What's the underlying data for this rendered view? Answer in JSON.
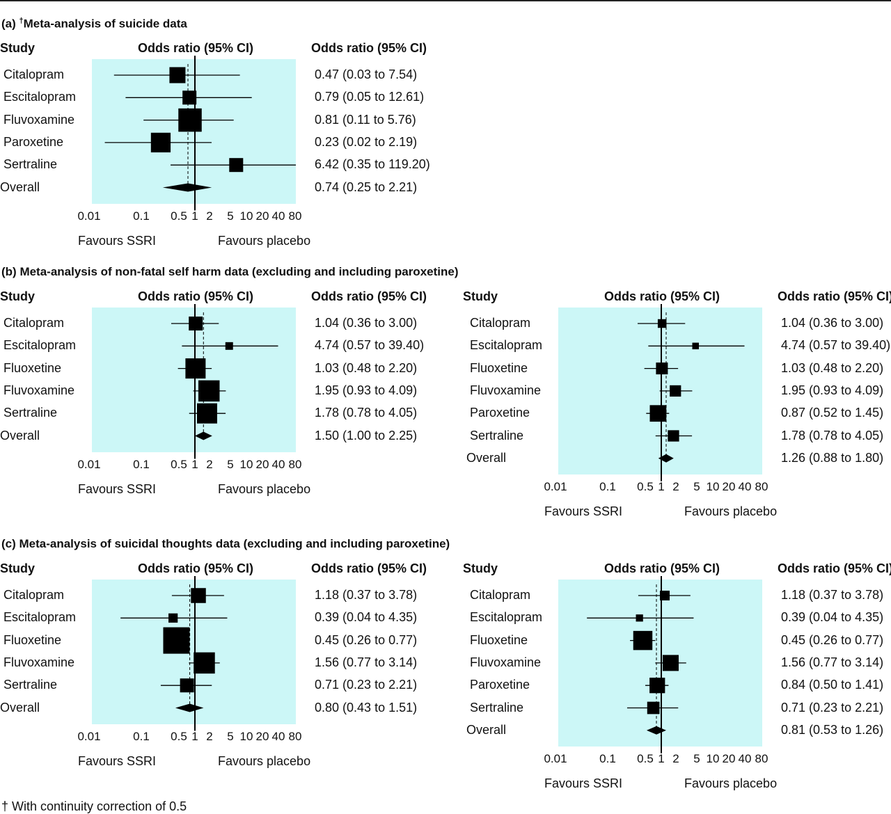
{
  "sections": [
    {
      "id": "a",
      "title_prefix": "(a) ",
      "title_sup": "†",
      "title_rest": "Meta-analysis of suicide data"
    },
    {
      "id": "b",
      "title_prefix": "(b) ",
      "title_sup": "",
      "title_rest": "Meta-analysis of non-fatal self harm data (excluding and including paroxetine)"
    },
    {
      "id": "c",
      "title_prefix": "(c) ",
      "title_sup": "",
      "title_rest": "Meta-analysis of suicidal thoughts data (excluding and including paroxetine)"
    }
  ],
  "headers": {
    "study": "Study",
    "or_ci": "Odds ratio (95% CI)"
  },
  "axis": {
    "ticks": [
      0.01,
      0.1,
      0.5,
      1,
      2,
      5,
      10,
      20,
      40,
      80
    ],
    "tick_labels": [
      "0.01",
      "0.1",
      "0.5",
      "1",
      "2",
      "5",
      "10",
      "20",
      "40",
      "80"
    ],
    "favours_left": "Favours SSRI",
    "favours_right": "Favours placebo",
    "scale": "log"
  },
  "footnote": "† With continuity correction of 0.5",
  "chart_data": [
    {
      "type": "forest",
      "section": "a",
      "rows": [
        {
          "study": "Citalopram",
          "or": 0.47,
          "lo": 0.03,
          "hi": 7.54,
          "label": "0.47 (0.03 to 7.54)",
          "weight": 2
        },
        {
          "study": "Escitalopram",
          "or": 0.79,
          "lo": 0.05,
          "hi": 12.61,
          "label": "0.79 (0.05 to 12.61)",
          "weight": 1.6
        },
        {
          "study": "Fluvoxamine",
          "or": 0.81,
          "lo": 0.11,
          "hi": 5.76,
          "label": "0.81 (0.11 to 5.76)",
          "weight": 3.4
        },
        {
          "study": "Paroxetine",
          "or": 0.23,
          "lo": 0.02,
          "hi": 2.19,
          "label": "0.23 (0.02 to 2.19)",
          "weight": 2.7
        },
        {
          "study": "Sertraline",
          "or": 6.42,
          "lo": 0.35,
          "hi": 119.2,
          "label": "6.42 (0.35 to 119.20)",
          "weight": 1.6
        }
      ],
      "overall": {
        "study": "Overall",
        "or": 0.74,
        "lo": 0.25,
        "hi": 2.21,
        "label": "0.74 (0.25 to 2.21)"
      }
    },
    {
      "type": "forest",
      "section": "b",
      "rows": [
        {
          "study": "Citalopram",
          "or": 1.04,
          "lo": 0.36,
          "hi": 3.0,
          "label": "1.04 (0.36 to 3.00)",
          "weight": 1.6
        },
        {
          "study": "Escitalopram",
          "or": 4.74,
          "lo": 0.57,
          "hi": 39.4,
          "label": "4.74 (0.57 to 39.40)",
          "weight": 0.4
        },
        {
          "study": "Fluoxetine",
          "or": 1.03,
          "lo": 0.48,
          "hi": 2.2,
          "label": "1.03 (0.48 to 2.20)",
          "weight": 2.8
        },
        {
          "study": "Fluvoxamine",
          "or": 1.95,
          "lo": 0.93,
          "hi": 4.09,
          "label": "1.95 (0.93 to 4.09)",
          "weight": 3.0
        },
        {
          "study": "Sertraline",
          "or": 1.78,
          "lo": 0.78,
          "hi": 4.05,
          "label": "1.78 (0.78 to 4.05)",
          "weight": 2.8
        }
      ],
      "overall": {
        "study": "Overall",
        "or": 1.5,
        "lo": 1.0,
        "hi": 2.25,
        "label": "1.50 (1.00 to 2.25)"
      }
    },
    {
      "type": "forest",
      "section": "b",
      "rows": [
        {
          "study": "Citalopram",
          "or": 1.04,
          "lo": 0.36,
          "hi": 3.0,
          "label": "1.04 (0.36 to 3.00)",
          "weight": 0.6
        },
        {
          "study": "Escitalopram",
          "or": 4.74,
          "lo": 0.57,
          "hi": 39.4,
          "label": "4.74 (0.57 to 39.40)",
          "weight": 0.2
        },
        {
          "study": "Fluoxetine",
          "or": 1.03,
          "lo": 0.48,
          "hi": 2.2,
          "label": "1.03 (0.48 to 2.20)",
          "weight": 1.2
        },
        {
          "study": "Fluvoxamine",
          "or": 1.95,
          "lo": 0.93,
          "hi": 4.09,
          "label": "1.95 (0.93 to 4.09)",
          "weight": 1.1
        },
        {
          "study": "Paroxetine",
          "or": 0.87,
          "lo": 0.52,
          "hi": 1.45,
          "label": "0.87 (0.52 to 1.45)",
          "weight": 2.1
        },
        {
          "study": "Sertraline",
          "or": 1.78,
          "lo": 0.78,
          "hi": 4.05,
          "label": "1.78 (0.78 to 4.05)",
          "weight": 1.1
        }
      ],
      "overall": {
        "study": "Overall",
        "or": 1.26,
        "lo": 0.88,
        "hi": 1.8,
        "label": "1.26 (0.88 to 1.80)"
      }
    },
    {
      "type": "forest",
      "section": "c",
      "rows": [
        {
          "study": "Citalopram",
          "or": 1.18,
          "lo": 0.37,
          "hi": 3.78,
          "label": "1.18 (0.37 to 3.78)",
          "weight": 1.8
        },
        {
          "study": "Escitalopram",
          "or": 0.39,
          "lo": 0.04,
          "hi": 4.35,
          "label": "0.39 (0.04 to 4.35)",
          "weight": 0.7
        },
        {
          "study": "Fluoxetine",
          "or": 0.45,
          "lo": 0.26,
          "hi": 0.77,
          "label": "0.45 (0.26 to 0.77)",
          "weight": 4.0
        },
        {
          "study": "Fluvoxamine",
          "or": 1.56,
          "lo": 0.77,
          "hi": 3.14,
          "label": "1.56 (0.77 to 3.14)",
          "weight": 3.0
        },
        {
          "study": "Sertraline",
          "or": 0.71,
          "lo": 0.23,
          "hi": 2.21,
          "label": "0.71 (0.23 to 2.21)",
          "weight": 1.6
        }
      ],
      "overall": {
        "study": "Overall",
        "or": 0.8,
        "lo": 0.43,
        "hi": 1.51,
        "label": "0.80 (0.43 to 1.51)"
      }
    },
    {
      "type": "forest",
      "section": "c",
      "rows": [
        {
          "study": "Citalopram",
          "or": 1.18,
          "lo": 0.37,
          "hi": 3.78,
          "label": "1.18 (0.37 to 3.78)",
          "weight": 0.8
        },
        {
          "study": "Escitalopram",
          "or": 0.39,
          "lo": 0.04,
          "hi": 4.35,
          "label": "0.39 (0.04 to 4.35)",
          "weight": 0.3
        },
        {
          "study": "Fluoxetine",
          "or": 0.45,
          "lo": 0.26,
          "hi": 0.77,
          "label": "0.45 (0.26 to 0.77)",
          "weight": 2.6
        },
        {
          "study": "Fluvoxamine",
          "or": 1.56,
          "lo": 0.77,
          "hi": 3.14,
          "label": "1.56 (0.77 to 3.14)",
          "weight": 2.0
        },
        {
          "study": "Paroxetine",
          "or": 0.84,
          "lo": 0.5,
          "hi": 1.41,
          "label": "0.84 (0.50 to 1.41)",
          "weight": 1.9
        },
        {
          "study": "Sertraline",
          "or": 0.71,
          "lo": 0.23,
          "hi": 2.21,
          "label": "0.71 (0.23 to 2.21)",
          "weight": 1.3
        }
      ],
      "overall": {
        "study": "Overall",
        "or": 0.81,
        "lo": 0.53,
        "hi": 1.26,
        "label": "0.81 (0.53 to 1.26)"
      }
    }
  ]
}
